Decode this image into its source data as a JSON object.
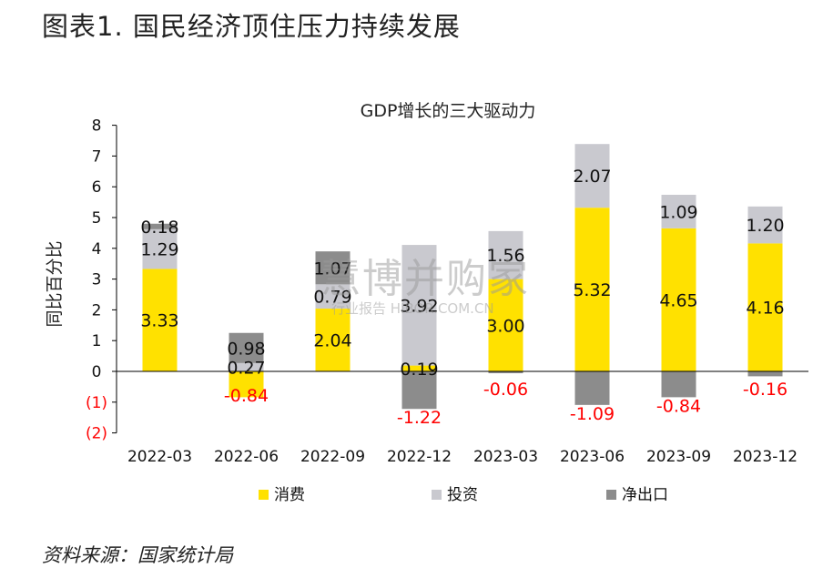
{
  "page_title": "图表1. 国民经济顶住压力持续发展",
  "source_note": "资料来源：国家统计局",
  "watermark": {
    "main": "慧博并购家",
    "sub": "行业报告 HIBOR.COM.CN"
  },
  "colors": {
    "consumption": "#FFE100",
    "investment": "#C9C9CF",
    "net_export": "#8C8C8C",
    "negative_label": "#FF0000",
    "axis": "#000000"
  },
  "chart_data": {
    "type": "bar",
    "stacked": true,
    "title": "GDP增长的三大驱动力",
    "ylabel": "同比百分比",
    "xlabel": "",
    "ylim": [
      -2,
      8
    ],
    "yticks": [
      -2,
      -1,
      0,
      1,
      2,
      3,
      4,
      5,
      6,
      7,
      8
    ],
    "ytick_labels": [
      "(2)",
      "(1)",
      "0",
      "1",
      "2",
      "3",
      "4",
      "5",
      "6",
      "7",
      "8"
    ],
    "categories": [
      "2022-03",
      "2022-06",
      "2022-09",
      "2022-12",
      "2023-03",
      "2023-06",
      "2023-09",
      "2023-12"
    ],
    "series": [
      {
        "name": "消费",
        "values": [
          3.33,
          -0.84,
          2.04,
          0.19,
          3.0,
          5.32,
          4.65,
          4.16
        ],
        "labels": [
          "3.33",
          "-0.84",
          "2.04",
          "0.19",
          "3.00",
          "5.32",
          "4.65",
          "4.16"
        ]
      },
      {
        "name": "投资",
        "values": [
          1.29,
          0.27,
          0.79,
          3.92,
          1.56,
          2.07,
          1.09,
          1.2
        ],
        "labels": [
          "1.29",
          "0.27",
          "0.79",
          "3.92",
          "1.56",
          "2.07",
          "1.09",
          "1.20"
        ]
      },
      {
        "name": "净出口",
        "values": [
          0.18,
          0.98,
          1.07,
          -1.22,
          -0.06,
          -1.09,
          -0.84,
          -0.16
        ],
        "labels": [
          "0.18",
          "0.98",
          "1.07",
          "-1.22",
          "-0.06",
          "-1.09",
          "-0.84",
          "-0.16"
        ]
      }
    ],
    "legend": {
      "position": "bottom",
      "items": [
        "消费",
        "投资",
        "净出口"
      ]
    },
    "grid": false
  }
}
